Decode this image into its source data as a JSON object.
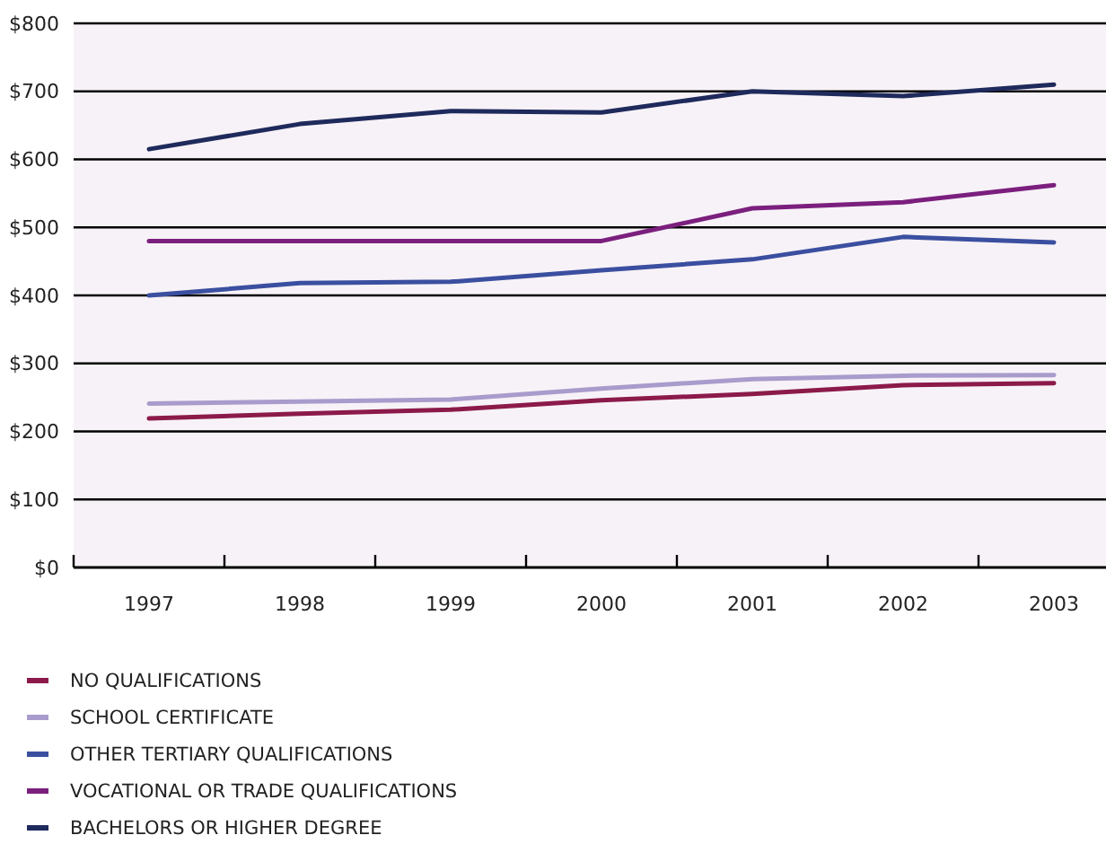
{
  "chart_data": {
    "type": "line",
    "categories": [
      "1997",
      "1998",
      "1999",
      "2000",
      "2001",
      "2002",
      "2003"
    ],
    "ylim": [
      0,
      800
    ],
    "yticks": [
      {
        "value": 0,
        "label": "$0"
      },
      {
        "value": 100,
        "label": "$100"
      },
      {
        "value": 200,
        "label": "$200"
      },
      {
        "value": 300,
        "label": "$300"
      },
      {
        "value": 400,
        "label": "$400"
      },
      {
        "value": 500,
        "label": "$500"
      },
      {
        "value": 600,
        "label": "$600"
      },
      {
        "value": 700,
        "label": "$700"
      },
      {
        "value": 800,
        "label": "$800"
      }
    ],
    "grid": "y",
    "legend": "bottom",
    "marker": "none",
    "line_style": "solid",
    "series": [
      {
        "name": "NO QUALIFICATIONS",
        "color": "#8b1a4a",
        "values": [
          219,
          226,
          232,
          246,
          255,
          268,
          271
        ]
      },
      {
        "name": "SCHOOL CERTIFICATE",
        "color": "#a99bcc",
        "values": [
          241,
          244,
          247,
          263,
          277,
          282,
          283
        ]
      },
      {
        "name": "OTHER TERTIARY QUALIFICATIONS",
        "color": "#3b4fa0",
        "values": [
          400,
          418,
          420,
          437,
          453,
          486,
          478
        ]
      },
      {
        "name": "VOCATIONAL OR TRADE QUALIFICATIONS",
        "color": "#7b1f7e",
        "values": [
          480,
          480,
          480,
          480,
          528,
          537,
          562
        ]
      },
      {
        "name": "BACHELORS OR HIGHER DEGREE",
        "color": "#1f2a5c",
        "values": [
          615,
          652,
          671,
          669,
          700,
          693,
          710
        ]
      }
    ]
  }
}
